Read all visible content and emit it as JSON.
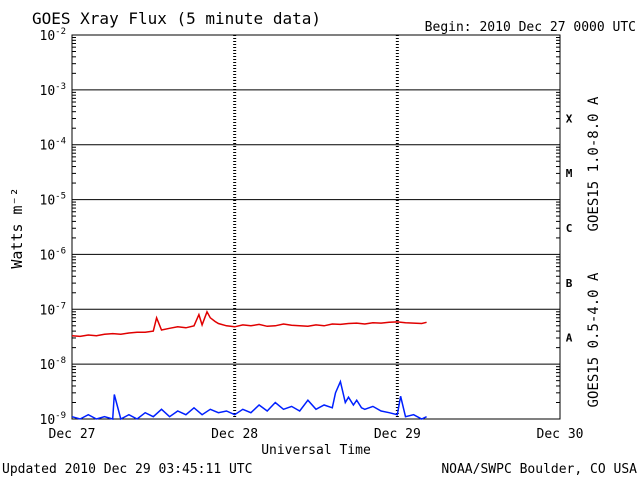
{
  "chart_data": {
    "type": "line",
    "title": "GOES Xray Flux (5 minute data)",
    "begin_label": "Begin:  2010 Dec 27 0000 UTC",
    "xlabel": "Universal Time",
    "ylabel": "Watts m⁻²",
    "x_ticks": [
      "Dec 27",
      "Dec 28",
      "Dec 29",
      "Dec 30"
    ],
    "xlim_days": [
      0,
      3
    ],
    "y_scale": "log",
    "ylim": [
      1e-09,
      0.01
    ],
    "y_ticks": [
      {
        "base": "10",
        "exp": "-2"
      },
      {
        "base": "10",
        "exp": "-3"
      },
      {
        "base": "10",
        "exp": "-4"
      },
      {
        "base": "10",
        "exp": "-5"
      },
      {
        "base": "10",
        "exp": "-6"
      },
      {
        "base": "10",
        "exp": "-7"
      },
      {
        "base": "10",
        "exp": "-8"
      },
      {
        "base": "10",
        "exp": "-9"
      }
    ],
    "flare_classes": [
      {
        "label": "X",
        "lower": 0.0001
      },
      {
        "label": "M",
        "lower": 1e-05
      },
      {
        "label": "C",
        "lower": 1e-06
      },
      {
        "label": "B",
        "lower": 1e-07
      },
      {
        "label": "A",
        "lower": 1e-08
      }
    ],
    "grid": {
      "horizontal_decades": true,
      "vertical_day_marks": true
    },
    "series": [
      {
        "name": "GOES15 1.0-8.0 A",
        "color": "#e00000",
        "x_days": [
          0.0,
          0.05,
          0.1,
          0.15,
          0.2,
          0.25,
          0.3,
          0.35,
          0.4,
          0.45,
          0.5,
          0.52,
          0.55,
          0.6,
          0.65,
          0.7,
          0.75,
          0.78,
          0.8,
          0.83,
          0.85,
          0.88,
          0.9,
          0.95,
          1.0,
          1.05,
          1.1,
          1.15,
          1.2,
          1.25,
          1.3,
          1.35,
          1.4,
          1.45,
          1.5,
          1.55,
          1.6,
          1.65,
          1.7,
          1.75,
          1.8,
          1.85,
          1.9,
          1.95,
          2.0,
          2.05,
          2.1,
          2.15,
          2.18
        ],
        "values": [
          3.3e-08,
          3.2e-08,
          3.4e-08,
          3.3e-08,
          3.5e-08,
          3.6e-08,
          3.5e-08,
          3.7e-08,
          3.8e-08,
          3.8e-08,
          4e-08,
          7e-08,
          4.2e-08,
          4.5e-08,
          4.8e-08,
          4.6e-08,
          5e-08,
          8e-08,
          5.2e-08,
          9e-08,
          7e-08,
          6e-08,
          5.5e-08,
          5e-08,
          4.8e-08,
          5.2e-08,
          5e-08,
          5.3e-08,
          4.9e-08,
          5e-08,
          5.4e-08,
          5.1e-08,
          5e-08,
          4.9e-08,
          5.2e-08,
          5e-08,
          5.4e-08,
          5.3e-08,
          5.5e-08,
          5.6e-08,
          5.4e-08,
          5.7e-08,
          5.6e-08,
          5.8e-08,
          5.9e-08,
          5.7e-08,
          5.6e-08,
          5.5e-08,
          5.8e-08
        ]
      },
      {
        "name": "GOES15 0.5-4.0 A",
        "color": "#0020ff",
        "x_days": [
          0.0,
          0.05,
          0.1,
          0.15,
          0.2,
          0.25,
          0.26,
          0.3,
          0.35,
          0.4,
          0.45,
          0.5,
          0.55,
          0.6,
          0.65,
          0.7,
          0.75,
          0.8,
          0.85,
          0.9,
          0.95,
          1.0,
          1.05,
          1.1,
          1.15,
          1.2,
          1.25,
          1.3,
          1.35,
          1.4,
          1.45,
          1.5,
          1.55,
          1.6,
          1.62,
          1.65,
          1.68,
          1.7,
          1.73,
          1.75,
          1.78,
          1.8,
          1.85,
          1.9,
          1.95,
          2.0,
          2.02,
          2.05,
          2.1,
          2.15,
          2.18
        ],
        "values": [
          1.1e-09,
          1e-09,
          1.2e-09,
          1e-09,
          1.1e-09,
          1e-09,
          2.8e-09,
          1e-09,
          1.2e-09,
          1e-09,
          1.3e-09,
          1.1e-09,
          1.5e-09,
          1.1e-09,
          1.4e-09,
          1.2e-09,
          1.6e-09,
          1.2e-09,
          1.5e-09,
          1.3e-09,
          1.4e-09,
          1.2e-09,
          1.5e-09,
          1.3e-09,
          1.8e-09,
          1.4e-09,
          2e-09,
          1.5e-09,
          1.7e-09,
          1.4e-09,
          2.2e-09,
          1.5e-09,
          1.8e-09,
          1.6e-09,
          3e-09,
          4.8e-09,
          2e-09,
          2.5e-09,
          1.8e-09,
          2.2e-09,
          1.6e-09,
          1.5e-09,
          1.7e-09,
          1.4e-09,
          1.3e-09,
          1.2e-09,
          2.6e-09,
          1.1e-09,
          1.2e-09,
          1e-09,
          1.1e-09
        ]
      }
    ]
  },
  "footer": {
    "updated": "Updated 2010 Dec 29 03:45:11 UTC",
    "credit": "NOAA/SWPC Boulder, CO USA"
  }
}
